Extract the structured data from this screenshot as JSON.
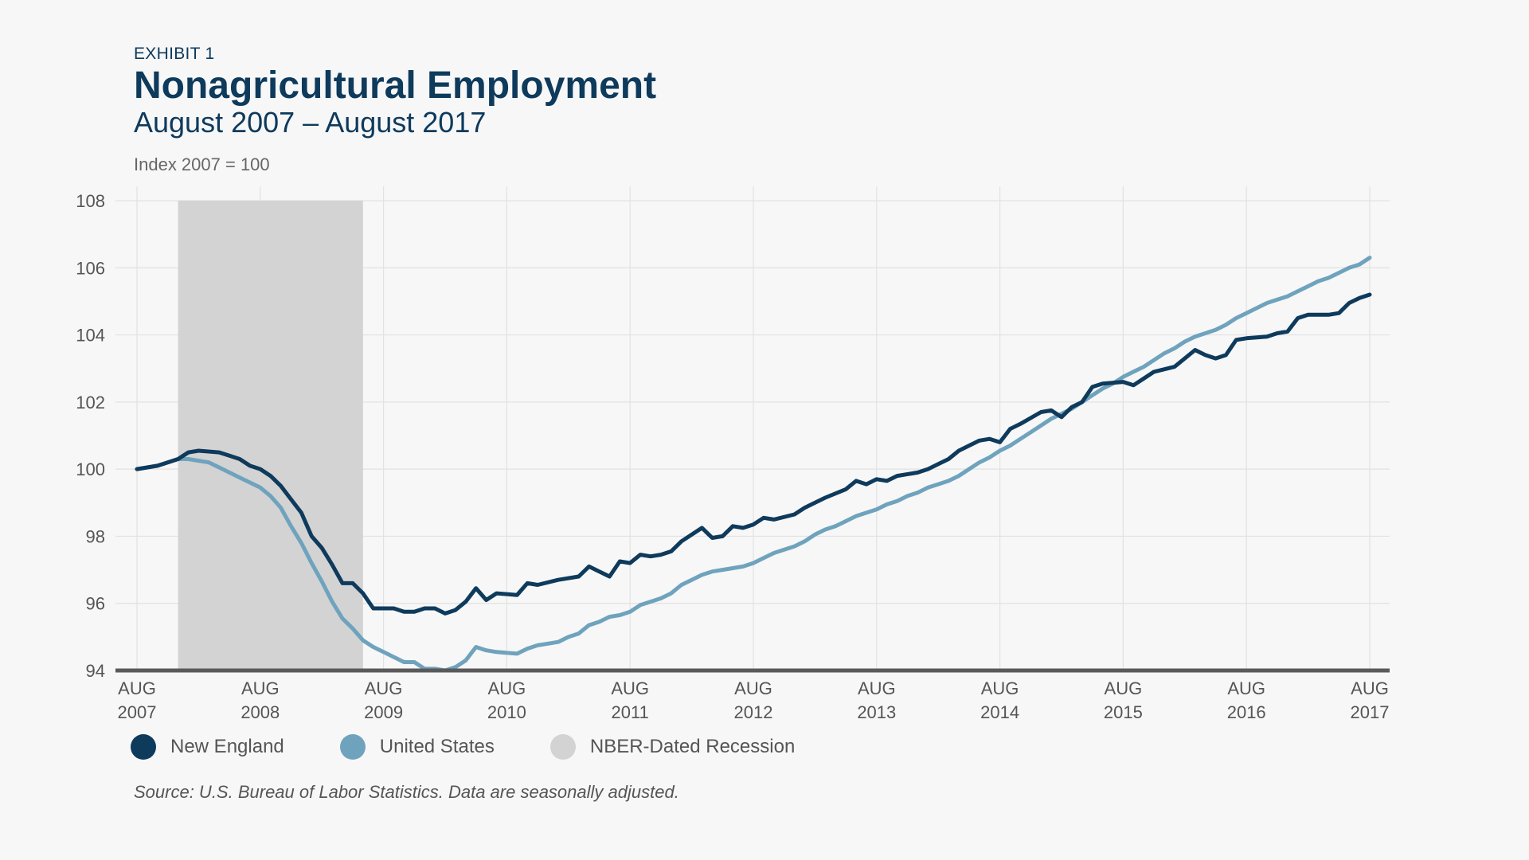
{
  "header": {
    "eyebrow": "EXHIBIT 1",
    "title": "Nonagricultural Employment",
    "subtitle": "August 2007 – August 2017",
    "unit": "Index 2007 = 100"
  },
  "legend": {
    "items": [
      {
        "label": "New England",
        "color": "#0e3a5c"
      },
      {
        "label": "United States",
        "color": "#6fa3bd"
      },
      {
        "label": "NBER-Dated Recession",
        "color": "#d3d3d3"
      }
    ]
  },
  "source": "Source: U.S. Bureau of Labor Statistics. Data are seasonally adjusted.",
  "chart_data": {
    "type": "line",
    "x_axis": {
      "ticks": [
        {
          "month": "AUG",
          "year": "2007"
        },
        {
          "month": "AUG",
          "year": "2008"
        },
        {
          "month": "AUG",
          "year": "2009"
        },
        {
          "month": "AUG",
          "year": "2010"
        },
        {
          "month": "AUG",
          "year": "2011"
        },
        {
          "month": "AUG",
          "year": "2012"
        },
        {
          "month": "AUG",
          "year": "2013"
        },
        {
          "month": "AUG",
          "year": "2014"
        },
        {
          "month": "AUG",
          "year": "2015"
        },
        {
          "month": "AUG",
          "year": "2016"
        },
        {
          "month": "AUG",
          "year": "2017"
        }
      ],
      "range": [
        "2007-08",
        "2017-08"
      ]
    },
    "y_axis": {
      "ticks": [
        94,
        96,
        98,
        100,
        102,
        104,
        106,
        108
      ],
      "ylim": [
        94,
        108
      ]
    },
    "grid": true,
    "recession": {
      "start": "2007-12",
      "end": "2009-06",
      "label": "NBER-Dated Recession"
    },
    "series": [
      {
        "name": "New England",
        "color": "#0e3a5c",
        "points": [
          [
            "2007-08",
            100.0
          ],
          [
            "2007-10",
            100.1
          ],
          [
            "2007-12",
            100.3
          ],
          [
            "2008-01",
            100.5
          ],
          [
            "2008-02",
            100.55
          ],
          [
            "2008-04",
            100.5
          ],
          [
            "2008-05",
            100.4
          ],
          [
            "2008-06",
            100.3
          ],
          [
            "2008-07",
            100.1
          ],
          [
            "2008-08",
            100.0
          ],
          [
            "2008-09",
            99.8
          ],
          [
            "2008-10",
            99.5
          ],
          [
            "2008-11",
            99.1
          ],
          [
            "2008-12",
            98.7
          ],
          [
            "2009-01",
            98.0
          ],
          [
            "2009-02",
            97.65
          ],
          [
            "2009-03",
            97.15
          ],
          [
            "2009-04",
            96.6
          ],
          [
            "2009-05",
            96.6
          ],
          [
            "2009-06",
            96.3
          ],
          [
            "2009-07",
            95.85
          ],
          [
            "2009-09",
            95.85
          ],
          [
            "2009-10",
            95.75
          ],
          [
            "2009-11",
            95.75
          ],
          [
            "2009-12",
            95.85
          ],
          [
            "2010-01",
            95.85
          ],
          [
            "2010-02",
            95.7
          ],
          [
            "2010-03",
            95.8
          ],
          [
            "2010-04",
            96.05
          ],
          [
            "2010-05",
            96.45
          ],
          [
            "2010-06",
            96.1
          ],
          [
            "2010-07",
            96.3
          ],
          [
            "2010-09",
            96.25
          ],
          [
            "2010-10",
            96.6
          ],
          [
            "2010-11",
            96.55
          ],
          [
            "2011-01",
            96.7
          ],
          [
            "2011-03",
            96.8
          ],
          [
            "2011-04",
            97.1
          ],
          [
            "2011-05",
            96.95
          ],
          [
            "2011-06",
            96.8
          ],
          [
            "2011-07",
            97.25
          ],
          [
            "2011-08",
            97.2
          ],
          [
            "2011-09",
            97.45
          ],
          [
            "2011-10",
            97.4
          ],
          [
            "2011-11",
            97.45
          ],
          [
            "2011-12",
            97.55
          ],
          [
            "2012-01",
            97.85
          ],
          [
            "2012-03",
            98.25
          ],
          [
            "2012-04",
            97.95
          ],
          [
            "2012-05",
            98.0
          ],
          [
            "2012-06",
            98.3
          ],
          [
            "2012-07",
            98.25
          ],
          [
            "2012-08",
            98.35
          ],
          [
            "2012-09",
            98.55
          ],
          [
            "2012-10",
            98.5
          ],
          [
            "2012-12",
            98.65
          ],
          [
            "2013-01",
            98.85
          ],
          [
            "2013-03",
            99.15
          ],
          [
            "2013-05",
            99.4
          ],
          [
            "2013-06",
            99.65
          ],
          [
            "2013-07",
            99.55
          ],
          [
            "2013-08",
            99.7
          ],
          [
            "2013-09",
            99.65
          ],
          [
            "2013-10",
            99.8
          ],
          [
            "2013-12",
            99.9
          ],
          [
            "2014-01",
            100.0
          ],
          [
            "2014-02",
            100.15
          ],
          [
            "2014-03",
            100.3
          ],
          [
            "2014-04",
            100.55
          ],
          [
            "2014-06",
            100.85
          ],
          [
            "2014-07",
            100.9
          ],
          [
            "2014-08",
            100.8
          ],
          [
            "2014-09",
            101.2
          ],
          [
            "2014-10",
            101.35
          ],
          [
            "2014-12",
            101.7
          ],
          [
            "2015-01",
            101.75
          ],
          [
            "2015-02",
            101.55
          ],
          [
            "2015-03",
            101.85
          ],
          [
            "2015-04",
            102.0
          ],
          [
            "2015-05",
            102.45
          ],
          [
            "2015-06",
            102.55
          ],
          [
            "2015-08",
            102.6
          ],
          [
            "2015-09",
            102.5
          ],
          [
            "2015-10",
            102.7
          ],
          [
            "2015-11",
            102.9
          ],
          [
            "2016-01",
            103.05
          ],
          [
            "2016-02",
            103.3
          ],
          [
            "2016-03",
            103.55
          ],
          [
            "2016-04",
            103.4
          ],
          [
            "2016-05",
            103.3
          ],
          [
            "2016-06",
            103.4
          ],
          [
            "2016-07",
            103.85
          ],
          [
            "2016-08",
            103.9
          ],
          [
            "2016-10",
            103.95
          ],
          [
            "2016-11",
            104.05
          ],
          [
            "2016-12",
            104.1
          ],
          [
            "2017-01",
            104.5
          ],
          [
            "2017-02",
            104.6
          ],
          [
            "2017-04",
            104.6
          ],
          [
            "2017-05",
            104.65
          ],
          [
            "2017-06",
            104.95
          ],
          [
            "2017-07",
            105.1
          ],
          [
            "2017-08",
            105.2
          ]
        ]
      },
      {
        "name": "United States",
        "color": "#6fa3bd",
        "points": [
          [
            "2007-08",
            100.0
          ],
          [
            "2007-10",
            100.1
          ],
          [
            "2007-11",
            100.2
          ],
          [
            "2007-12",
            100.3
          ],
          [
            "2008-01",
            100.3
          ],
          [
            "2008-02",
            100.25
          ],
          [
            "2008-03",
            100.2
          ],
          [
            "2008-04",
            100.05
          ],
          [
            "2008-05",
            99.9
          ],
          [
            "2008-06",
            99.75
          ],
          [
            "2008-07",
            99.6
          ],
          [
            "2008-08",
            99.45
          ],
          [
            "2008-09",
            99.2
          ],
          [
            "2008-10",
            98.85
          ],
          [
            "2008-11",
            98.3
          ],
          [
            "2008-12",
            97.8
          ],
          [
            "2009-01",
            97.2
          ],
          [
            "2009-02",
            96.65
          ],
          [
            "2009-03",
            96.05
          ],
          [
            "2009-04",
            95.55
          ],
          [
            "2009-05",
            95.25
          ],
          [
            "2009-06",
            94.9
          ],
          [
            "2009-07",
            94.7
          ],
          [
            "2009-08",
            94.55
          ],
          [
            "2009-09",
            94.4
          ],
          [
            "2009-10",
            94.25
          ],
          [
            "2009-11",
            94.25
          ],
          [
            "2009-12",
            94.05
          ],
          [
            "2010-01",
            94.05
          ],
          [
            "2010-02",
            94.0
          ],
          [
            "2010-03",
            94.1
          ],
          [
            "2010-04",
            94.3
          ],
          [
            "2010-05",
            94.7
          ],
          [
            "2010-06",
            94.6
          ],
          [
            "2010-07",
            94.55
          ],
          [
            "2010-09",
            94.5
          ],
          [
            "2010-10",
            94.65
          ],
          [
            "2010-11",
            94.75
          ],
          [
            "2010-12",
            94.8
          ],
          [
            "2011-01",
            94.85
          ],
          [
            "2011-02",
            95.0
          ],
          [
            "2011-03",
            95.1
          ],
          [
            "2011-04",
            95.35
          ],
          [
            "2011-05",
            95.45
          ],
          [
            "2011-06",
            95.6
          ],
          [
            "2011-07",
            95.65
          ],
          [
            "2011-08",
            95.75
          ],
          [
            "2011-09",
            95.95
          ],
          [
            "2011-10",
            96.05
          ],
          [
            "2011-11",
            96.15
          ],
          [
            "2011-12",
            96.3
          ],
          [
            "2012-01",
            96.55
          ],
          [
            "2012-02",
            96.7
          ],
          [
            "2012-03",
            96.85
          ],
          [
            "2012-04",
            96.95
          ],
          [
            "2012-05",
            97.0
          ],
          [
            "2012-06",
            97.05
          ],
          [
            "2012-07",
            97.1
          ],
          [
            "2012-08",
            97.2
          ],
          [
            "2012-09",
            97.35
          ],
          [
            "2012-10",
            97.5
          ],
          [
            "2012-11",
            97.6
          ],
          [
            "2012-12",
            97.7
          ],
          [
            "2013-01",
            97.85
          ],
          [
            "2013-02",
            98.05
          ],
          [
            "2013-03",
            98.2
          ],
          [
            "2013-04",
            98.3
          ],
          [
            "2013-05",
            98.45
          ],
          [
            "2013-06",
            98.6
          ],
          [
            "2013-07",
            98.7
          ],
          [
            "2013-08",
            98.8
          ],
          [
            "2013-09",
            98.95
          ],
          [
            "2013-10",
            99.05
          ],
          [
            "2013-11",
            99.2
          ],
          [
            "2013-12",
            99.3
          ],
          [
            "2014-01",
            99.45
          ],
          [
            "2014-02",
            99.55
          ],
          [
            "2014-03",
            99.65
          ],
          [
            "2014-04",
            99.8
          ],
          [
            "2014-05",
            100.0
          ],
          [
            "2014-06",
            100.2
          ],
          [
            "2014-07",
            100.35
          ],
          [
            "2014-08",
            100.55
          ],
          [
            "2014-09",
            100.7
          ],
          [
            "2014-10",
            100.9
          ],
          [
            "2014-11",
            101.1
          ],
          [
            "2014-12",
            101.3
          ],
          [
            "2015-01",
            101.5
          ],
          [
            "2015-02",
            101.65
          ],
          [
            "2015-03",
            101.8
          ],
          [
            "2015-04",
            102.0
          ],
          [
            "2015-05",
            102.2
          ],
          [
            "2015-06",
            102.4
          ],
          [
            "2015-07",
            102.55
          ],
          [
            "2015-08",
            102.75
          ],
          [
            "2015-09",
            102.9
          ],
          [
            "2015-10",
            103.05
          ],
          [
            "2015-11",
            103.25
          ],
          [
            "2015-12",
            103.45
          ],
          [
            "2016-01",
            103.6
          ],
          [
            "2016-02",
            103.8
          ],
          [
            "2016-03",
            103.95
          ],
          [
            "2016-04",
            104.05
          ],
          [
            "2016-05",
            104.15
          ],
          [
            "2016-06",
            104.3
          ],
          [
            "2016-07",
            104.5
          ],
          [
            "2016-08",
            104.65
          ],
          [
            "2016-09",
            104.8
          ],
          [
            "2016-10",
            104.95
          ],
          [
            "2016-11",
            105.05
          ],
          [
            "2016-12",
            105.15
          ],
          [
            "2017-01",
            105.3
          ],
          [
            "2017-02",
            105.45
          ],
          [
            "2017-03",
            105.6
          ],
          [
            "2017-04",
            105.7
          ],
          [
            "2017-05",
            105.85
          ],
          [
            "2017-06",
            106.0
          ],
          [
            "2017-07",
            106.1
          ],
          [
            "2017-08",
            106.3
          ]
        ]
      }
    ]
  }
}
